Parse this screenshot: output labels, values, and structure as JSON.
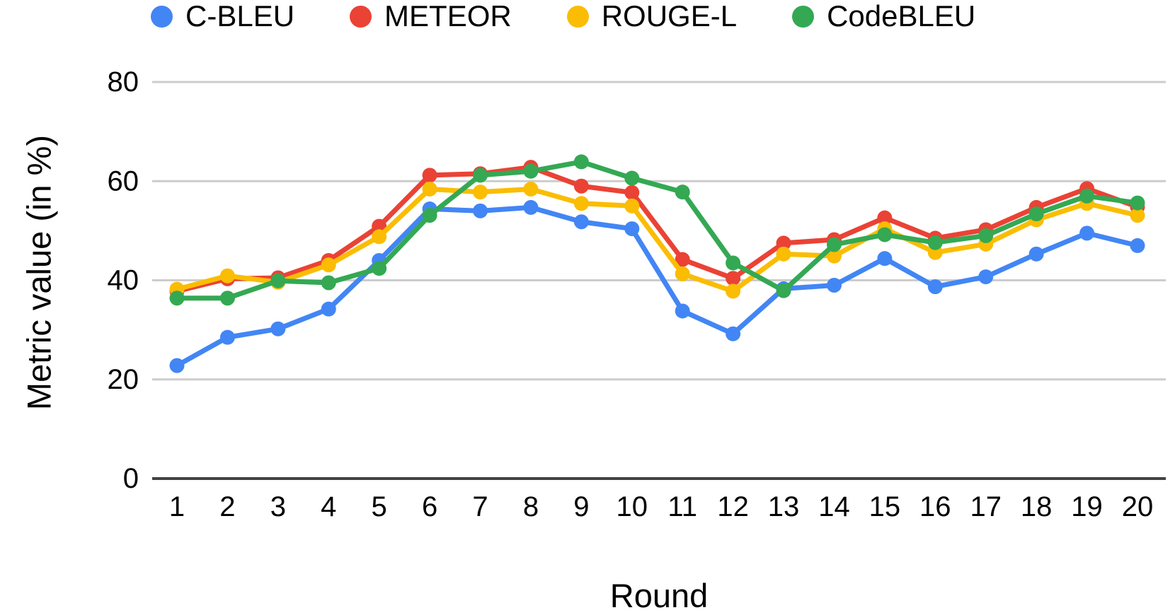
{
  "chart_data": {
    "type": "line",
    "title": "",
    "xlabel": "Round",
    "ylabel": "Metric value (in %)",
    "x": [
      1,
      2,
      3,
      4,
      5,
      6,
      7,
      8,
      9,
      10,
      11,
      12,
      13,
      14,
      15,
      16,
      17,
      18,
      19,
      20
    ],
    "yticks": [
      0,
      20,
      40,
      60,
      80
    ],
    "ylim": [
      0,
      80
    ],
    "grid": "horizontal",
    "legend_position": "top",
    "series": [
      {
        "name": "C-BLEU",
        "color": "#4285F4",
        "values": [
          22.8,
          28.5,
          30.2,
          34.2,
          44.0,
          54.4,
          54.0,
          54.7,
          51.8,
          50.4,
          33.8,
          29.2,
          38.3,
          39.0,
          44.4,
          38.7,
          40.7,
          45.3,
          49.5,
          47.0
        ]
      },
      {
        "name": "METEOR",
        "color": "#EA4335",
        "values": [
          37.8,
          40.3,
          40.5,
          44.0,
          50.9,
          61.2,
          61.5,
          62.8,
          59.0,
          57.7,
          44.2,
          40.4,
          47.5,
          48.2,
          52.6,
          48.5,
          50.2,
          54.7,
          58.5,
          54.8
        ]
      },
      {
        "name": "ROUGE-L",
        "color": "#FBBC04",
        "values": [
          38.2,
          40.9,
          39.6,
          43.1,
          48.8,
          58.4,
          57.8,
          58.4,
          55.5,
          55.0,
          41.3,
          37.8,
          45.3,
          44.9,
          50.4,
          45.6,
          47.3,
          52.2,
          55.5,
          53.1
        ]
      },
      {
        "name": "CodeBLEU",
        "color": "#34A853",
        "values": [
          36.4,
          36.4,
          39.9,
          39.5,
          42.4,
          53.1,
          61.2,
          62.0,
          63.9,
          60.6,
          57.8,
          43.5,
          37.9,
          47.2,
          49.2,
          47.6,
          49.0,
          53.4,
          57.0,
          55.6
        ]
      }
    ]
  },
  "style": {
    "grid_color": "#cccccc",
    "axis_color": "#424242",
    "text_color": "#000000",
    "background": "#ffffff"
  }
}
